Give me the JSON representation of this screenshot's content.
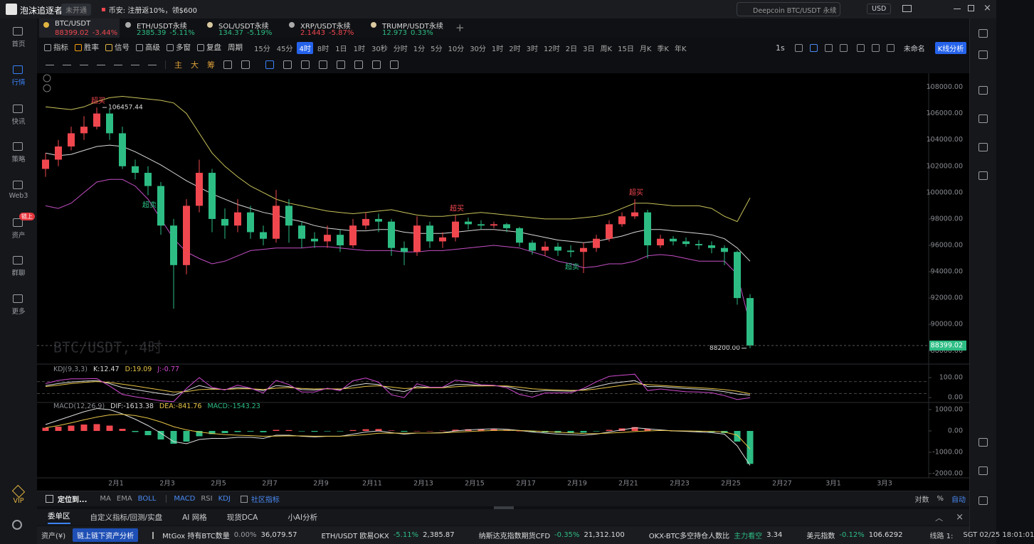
{
  "topbar": {
    "app_name": "泡沫追逐者",
    "badge": "未开通",
    "promo_label": "币安:",
    "promo_text": "注册返10%，领$600",
    "search": "Deepcoin BTC/USDT 永续",
    "currency": "USD"
  },
  "sidebar": {
    "items": [
      "首页",
      "行情",
      "快讯",
      "策略",
      "Web3",
      "资产",
      "群聊",
      "更多"
    ],
    "active": 1,
    "badge": "链上",
    "vip": "VIP"
  },
  "tabs": [
    {
      "symbol": "BTC/USDT",
      "price": "88399.02",
      "change": "-3.44%",
      "color": "#f0474f"
    },
    {
      "symbol": "ETH/USDT永续",
      "price": "2385.39",
      "change": "-5.11%",
      "color": "#2dbd84"
    },
    {
      "symbol": "SOL/USDT永续",
      "price": "134.37",
      "change": "-5.19%",
      "color": "#2dbd84"
    },
    {
      "symbol": "XRP/USDT永续",
      "price": "2.1443",
      "change": "-5.87%",
      "color": "#f0474f"
    },
    {
      "symbol": "TRUMP/USDT永续",
      "price": "12.973",
      "change": "0.33%",
      "color": "#2dbd84"
    }
  ],
  "toolbar": {
    "tools": [
      "指标",
      "胜率",
      "信号",
      "高级",
      "多窗",
      "复盘",
      "周期"
    ],
    "periods": [
      "15分",
      "45分",
      "4时",
      "8时",
      "1日",
      "1时",
      "30秒",
      "分时",
      "1分",
      "5分",
      "10分",
      "30分",
      "1时",
      "2时",
      "3时",
      "12时",
      "2日",
      "3日",
      "周K",
      "15日",
      "月K",
      "季K",
      "年K"
    ],
    "active_period": 2,
    "speed": "1s",
    "layout": "未命名",
    "analysis": "K线分析"
  },
  "drawbar": {
    "buttons": [
      "主",
      "大",
      "筹"
    ]
  },
  "chart": {
    "type": "candlestick",
    "watermark": "BTC/USDT, 4时",
    "up_color": "#f0474f",
    "down_color": "#2dbd84",
    "xlabels": [
      "2月1",
      "2月3",
      "2月5",
      "2月7",
      "2月9",
      "2月11",
      "2月13",
      "2月15",
      "2月17",
      "2月19",
      "2月21",
      "2月23",
      "2月25",
      "2月27",
      "3月1",
      "3月3"
    ],
    "ylim": [
      87100,
      109000
    ],
    "yticks": [
      {
        "value": 108000,
        "label": "108000.00"
      },
      {
        "value": 106000,
        "label": "106000.00"
      },
      {
        "value": 104000,
        "label": "104000.00"
      },
      {
        "value": 102000,
        "label": "102000.00"
      },
      {
        "value": 100000,
        "label": "100000.00"
      },
      {
        "value": 98000,
        "label": "98000.00"
      },
      {
        "value": 96000,
        "label": "96000.00"
      },
      {
        "value": 94000,
        "label": "94000.00"
      },
      {
        "value": 92000,
        "label": "92000.00"
      },
      {
        "value": 90000,
        "label": "90000.00"
      },
      {
        "value": 88000,
        "label": "88000.00"
      }
    ],
    "candles": {
      "open": [
        101800,
        102500,
        103500,
        104500,
        105000,
        106000,
        104500,
        102000,
        101500,
        100500,
        97500,
        94500,
        99000,
        101500,
        98000,
        97500,
        98500,
        97000,
        96500,
        99000,
        97500,
        96500,
        96300,
        96800,
        96000,
        97500,
        98000,
        97800,
        95800,
        95500,
        97500,
        96300,
        96600,
        97800,
        97600,
        97500,
        97600,
        97300,
        96200,
        95600,
        95900,
        95600,
        95500,
        95800,
        96500,
        97600,
        98200,
        98500,
        96000,
        96500,
        96300,
        96100,
        96000,
        95800,
        95500,
        92000
      ],
      "high": [
        103000,
        104000,
        105000,
        105800,
        106457.44,
        106300,
        105000,
        102500,
        102000,
        100800,
        98000,
        99500,
        102500,
        101800,
        98800,
        99500,
        99000,
        97500,
        100200,
        99500,
        97800,
        97000,
        97500,
        97200,
        98000,
        98500,
        98400,
        98000,
        96300,
        98200,
        97800,
        97000,
        98300,
        98100,
        97900,
        97800,
        97700,
        97400,
        96400,
        96300,
        96200,
        96000,
        96200,
        96800,
        97900,
        98500,
        99500,
        98700,
        96800,
        96700,
        96600,
        96400,
        96300,
        96000,
        95600,
        92300
      ],
      "low": [
        101200,
        102000,
        103200,
        104000,
        104800,
        104000,
        101800,
        101000,
        99800,
        96800,
        91200,
        93800,
        98500,
        97000,
        96500,
        97000,
        96500,
        96000,
        96200,
        96200,
        95800,
        95800,
        95800,
        95500,
        95800,
        97200,
        97000,
        95200,
        94500,
        95200,
        95800,
        95800,
        96300,
        97200,
        97200,
        97300,
        97000,
        95900,
        95300,
        95200,
        95200,
        95100,
        93900,
        95500,
        96300,
        97400,
        98000,
        95000,
        95800,
        96000,
        95900,
        95700,
        95400,
        94500,
        91500,
        88200
      ],
      "close": [
        102500,
        103500,
        104500,
        105000,
        106000,
        104500,
        102000,
        101500,
        100500,
        97500,
        94500,
        99000,
        101500,
        98000,
        97500,
        98500,
        97000,
        96500,
        99000,
        97500,
        96500,
        96300,
        96800,
        96000,
        97500,
        98000,
        97800,
        95800,
        95500,
        97500,
        96300,
        96600,
        97800,
        97600,
        97500,
        97600,
        97300,
        96200,
        95600,
        95900,
        95600,
        95500,
        95800,
        96500,
        97600,
        98200,
        98500,
        96000,
        96500,
        96300,
        96100,
        96000,
        95800,
        95500,
        92000,
        88399.02
      ]
    },
    "boll": {
      "upper": {
        "color": "#c9c35a",
        "values": [
          106500,
          106400,
          106300,
          106500,
          106900,
          107200,
          107300,
          107200,
          107100,
          107000,
          106800,
          106000,
          104500,
          103000,
          102000,
          101200,
          100500,
          100000,
          99500,
          99200,
          99000,
          98800,
          98600,
          98500,
          98400,
          98500,
          98600,
          98700,
          98500,
          98300,
          98200,
          98200,
          98300,
          98400,
          98500,
          98400,
          98300,
          98200,
          98100,
          98000,
          98000,
          98000,
          98100,
          98200,
          98400,
          98800,
          99200,
          99200,
          99100,
          99000,
          99000,
          99000,
          98800,
          98200,
          97800,
          99600
        ]
      },
      "mid": {
        "color": "#d8d8d8",
        "values": [
          103000,
          102800,
          102900,
          103200,
          103500,
          103600,
          103500,
          103100,
          102600,
          102100,
          101500,
          100900,
          100400,
          99900,
          99500,
          99100,
          98800,
          98500,
          98300,
          98000,
          97800,
          97500,
          97300,
          97200,
          97100,
          97100,
          97200,
          97200,
          97000,
          96900,
          96900,
          96900,
          97000,
          97100,
          97200,
          97200,
          97100,
          97000,
          96800,
          96600,
          96400,
          96300,
          96200,
          96300,
          96500,
          96700,
          97000,
          97200,
          97200,
          97100,
          97000,
          96900,
          96800,
          96500,
          95800,
          94800
        ]
      },
      "lower": {
        "color": "#c44fc4",
        "values": [
          99000,
          98800,
          99200,
          100000,
          100800,
          101000,
          101000,
          100500,
          99500,
          98000,
          96500,
          95500,
          95000,
          94600,
          94800,
          95200,
          95600,
          95700,
          95800,
          95800,
          95800,
          95900,
          95900,
          95800,
          95700,
          95600,
          95600,
          95600,
          95500,
          95500,
          95600,
          95600,
          95700,
          95800,
          95900,
          96000,
          95900,
          95800,
          95500,
          95200,
          94800,
          94600,
          94300,
          94400,
          94600,
          94600,
          94800,
          95200,
          95300,
          95200,
          95000,
          94800,
          94800,
          94800,
          93800,
          90000
        ]
      }
    },
    "annotations": {
      "overbought": "超买",
      "oversold": "超卖"
    },
    "low_label": "88200.00",
    "kdj": {
      "title": "KDJ(9,3,3)",
      "ylim": [
        -21,
        164
      ],
      "yticks": [
        {
          "value": 100,
          "label": "100.00"
        },
        {
          "value": 0,
          "label": "0.00"
        }
      ],
      "levels": [
        80,
        20
      ],
      "series": [
        {
          "name": "K:",
          "color": "#dcdcdc",
          "values": [
            60,
            70,
            78,
            82,
            85,
            70,
            50,
            40,
            30,
            20,
            12,
            35,
            60,
            45,
            40,
            50,
            45,
            35,
            60,
            55,
            40,
            38,
            45,
            40,
            60,
            70,
            65,
            40,
            30,
            55,
            50,
            50,
            65,
            65,
            60,
            60,
            55,
            40,
            30,
            35,
            33,
            32,
            40,
            55,
            70,
            78,
            85,
            55,
            55,
            50,
            45,
            42,
            38,
            30,
            18,
            12.47
          ]
        },
        {
          "name": "D:",
          "color": "#e8c547",
          "values": [
            55,
            62,
            70,
            76,
            80,
            76,
            67,
            58,
            48,
            38,
            28,
            30,
            40,
            42,
            41,
            44,
            44,
            41,
            47,
            50,
            46,
            43,
            44,
            43,
            48,
            56,
            59,
            53,
            45,
            48,
            49,
            49,
            54,
            58,
            58,
            59,
            58,
            52,
            44,
            41,
            38,
            36,
            37,
            43,
            52,
            61,
            69,
            65,
            61,
            57,
            53,
            49,
            45,
            40,
            32,
            19.09
          ]
        },
        {
          "name": "J:",
          "color": "#d04ad0",
          "values": [
            70,
            86,
            94,
            94,
            95,
            58,
            16,
            4,
            -6,
            -16,
            -20,
            45,
            100,
            51,
            38,
            62,
            47,
            23,
            86,
            65,
            28,
            28,
            47,
            34,
            84,
            98,
            77,
            14,
            0,
            69,
            52,
            52,
            87,
            79,
            64,
            62,
            49,
            16,
            2,
            23,
            23,
            24,
            46,
            79,
            106,
            112,
            117,
            35,
            43,
            36,
            29,
            28,
            24,
            10,
            -10,
            -0.77
          ]
        }
      ]
    },
    "macd": {
      "title": "MACD(12,26,9)",
      "ylim": [
        -2200,
        1300
      ],
      "yticks": [
        {
          "value": 1000,
          "label": "1000.00"
        },
        {
          "value": 0,
          "label": "0.00"
        },
        {
          "value": -1000,
          "label": "-1000.00"
        },
        {
          "value": -2000,
          "label": "-2000.00"
        }
      ],
      "lines": [
        {
          "name": "DIF:",
          "color": "#dcdcdc",
          "values": [
            300,
            500,
            700,
            900,
            1050,
            1000,
            800,
            550,
            250,
            -100,
            -500,
            -600,
            -400,
            -350,
            -350,
            -300,
            -300,
            -350,
            -200,
            -200,
            -250,
            -280,
            -250,
            -250,
            -150,
            -50,
            0,
            -80,
            -150,
            -100,
            -100,
            -80,
            0,
            50,
            80,
            100,
            80,
            20,
            -50,
            -100,
            -150,
            -180,
            -200,
            -150,
            -50,
            50,
            150,
            100,
            50,
            0,
            -20,
            -50,
            -80,
            -150,
            -700,
            -1613.38
          ]
        },
        {
          "name": "DEA:",
          "color": "#e8c547",
          "values": [
            150,
            250,
            380,
            520,
            650,
            750,
            780,
            720,
            600,
            420,
            200,
            50,
            -50,
            -120,
            -170,
            -200,
            -220,
            -250,
            -240,
            -230,
            -235,
            -245,
            -245,
            -245,
            -220,
            -170,
            -110,
            -100,
            -110,
            -100,
            -100,
            -90,
            -60,
            -30,
            0,
            20,
            30,
            20,
            0,
            -30,
            -60,
            -90,
            -120,
            -130,
            -100,
            -70,
            -30,
            0,
            20,
            10,
            0,
            -10,
            -20,
            -50,
            -200,
            -841.76
          ]
        }
      ],
      "histogram": {
        "name": "MACD:",
        "values": [
          150,
          200,
          250,
          300,
          320,
          250,
          100,
          -50,
          -200,
          -400,
          -600,
          -500,
          -250,
          -150,
          -100,
          -50,
          -30,
          -60,
          50,
          40,
          -20,
          -40,
          -20,
          -20,
          40,
          80,
          90,
          20,
          -40,
          0,
          0,
          10,
          60,
          80,
          80,
          80,
          50,
          0,
          -50,
          -70,
          -90,
          -90,
          -80,
          -20,
          50,
          120,
          180,
          100,
          40,
          0,
          -20,
          -40,
          -60,
          -100,
          -500,
          -1543.23
        ]
      }
    }
  },
  "indicator_bar": {
    "locate": "定位到...",
    "main": [
      "MA",
      "EMA",
      "BOLL"
    ],
    "active_main": [
      2
    ],
    "sub": [
      "MACD",
      "RSI",
      "KDJ"
    ],
    "active_sub": [
      0,
      2
    ],
    "community": "社区指标",
    "scale_modes": [
      "对数",
      "%",
      "自动"
    ],
    "active_scale": 2
  },
  "panel_tabs": {
    "items": [
      "委单区",
      "自定义指标/回测/实盘",
      "AI 网格",
      "现货DCA",
      "小AI分析"
    ],
    "active": 0
  },
  "statusbar": {
    "assets": "资产(¥)",
    "analysis": "链上链下资产分析",
    "tickers": [
      {
        "name": "MtGox 持有BTC数量",
        "change": "0.00%",
        "value": "36,079.57"
      },
      {
        "name": "ETH/USDT 欧易OKX",
        "change": "-5.11%",
        "value": "2,385.87"
      },
      {
        "name": "纳斯达克指数期货CFD",
        "change": "-0.35%",
        "value": "21,312.100"
      },
      {
        "name": "OKX-BTC多空持仓人数比",
        "change": "主力看空",
        "value": "3.34"
      },
      {
        "name": "美元指数",
        "change": "-0.12%",
        "value": "106.6292"
      }
    ],
    "line": "线路 1:",
    "time": "SGT 02/25 18:01:01"
  }
}
